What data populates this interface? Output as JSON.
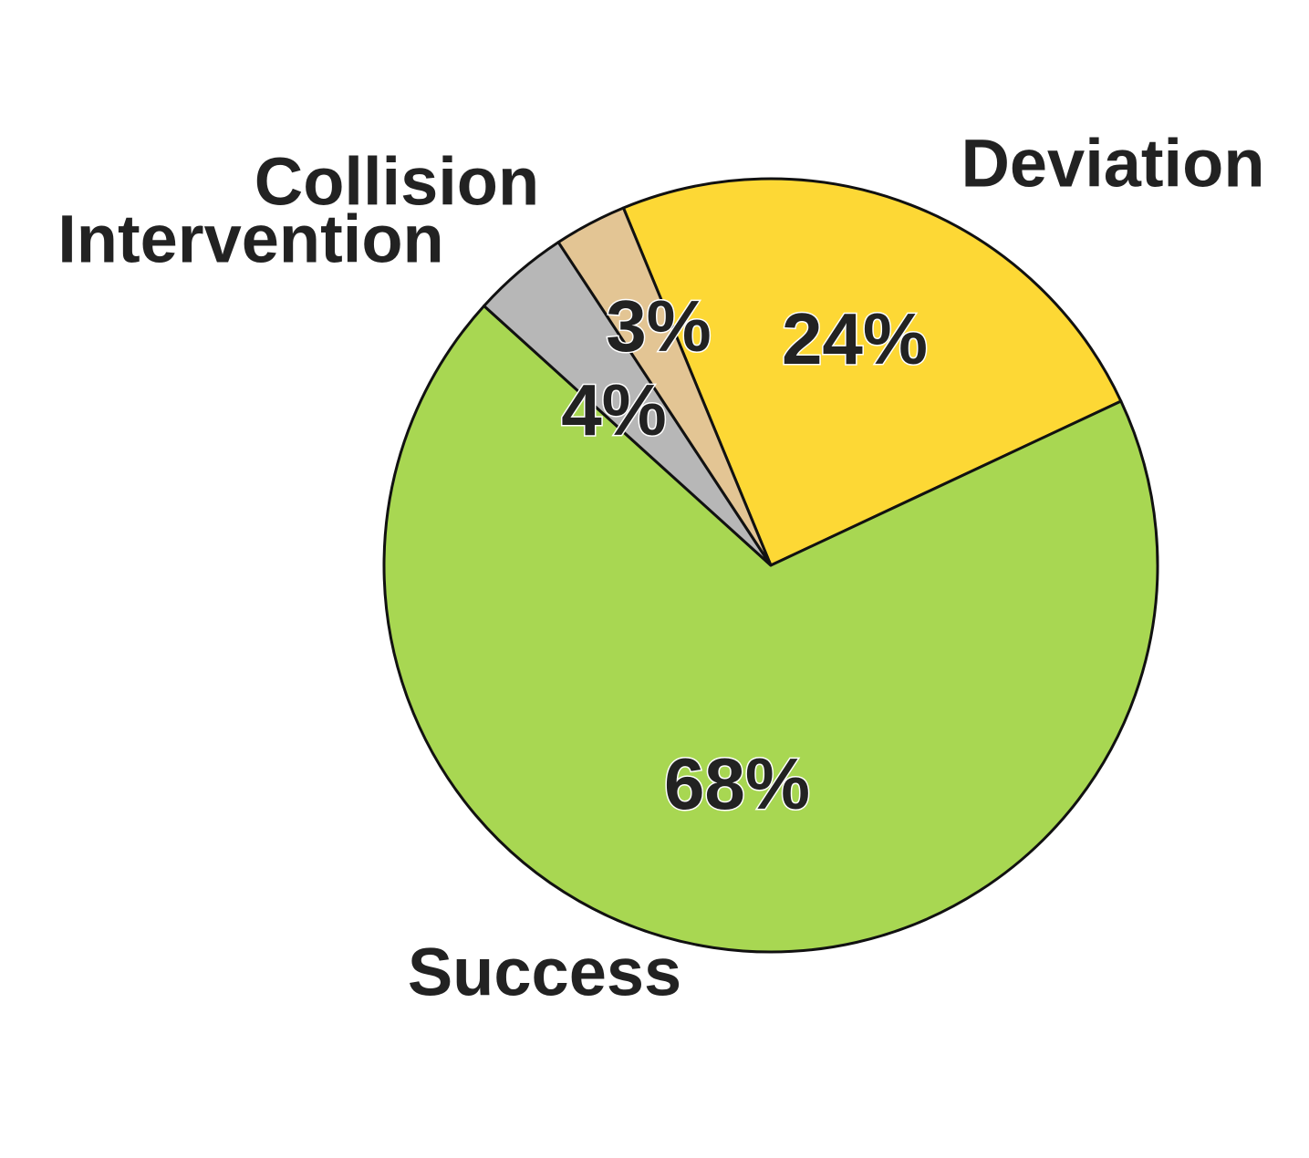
{
  "chart_data": {
    "type": "pie",
    "categories": [
      "Deviation",
      "Success",
      "Intervention",
      "Collision"
    ],
    "values": [
      24,
      68,
      4,
      3
    ],
    "value_labels": [
      "24%",
      "68%",
      "4%",
      "3%"
    ],
    "colors": [
      "#fdd835",
      "#a8d752",
      "#b7b7b7",
      "#e3c594"
    ]
  }
}
